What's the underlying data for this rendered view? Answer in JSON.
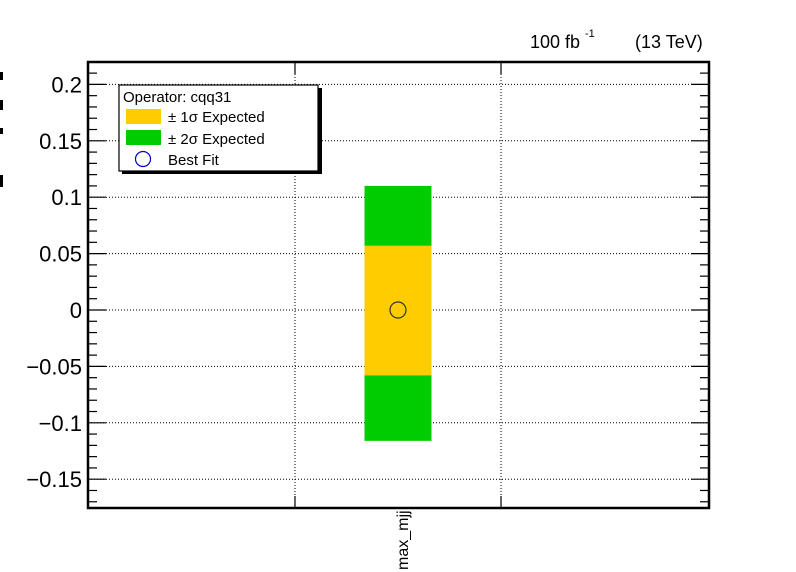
{
  "chart_data": {
    "type": "bar",
    "categories": [
      "max_mjj"
    ],
    "ylabel": "",
    "ylim": [
      -0.175,
      0.22
    ],
    "yticks": [
      "0.2",
      "0.15",
      "0.1",
      "0.05",
      "0",
      "−0.05",
      "−0.1",
      "−0.15"
    ],
    "ytick_values": [
      0.2,
      0.15,
      0.1,
      0.05,
      0,
      -0.05,
      -0.1,
      -0.15
    ],
    "grid": true,
    "legend_position": "top-left",
    "legend": {
      "title": "Operator: cqq31",
      "entries": [
        {
          "label": "± 1σ Expected",
          "color": "#ffcc00"
        },
        {
          "label": "± 2σ Expected",
          "color": "#00cc00"
        },
        {
          "label": "Best Fit",
          "color": "#0000cc"
        }
      ]
    },
    "series": [
      {
        "name": "± 2σ Expected",
        "low": [
          -0.116
        ],
        "high": [
          0.11
        ],
        "color": "#00cc00"
      },
      {
        "name": "± 1σ Expected",
        "low": [
          -0.058
        ],
        "high": [
          0.057
        ],
        "color": "#ffcc00"
      },
      {
        "name": "Best Fit",
        "values": [
          0.0
        ],
        "color": "#0000cc"
      }
    ],
    "luminosity": {
      "value": "100 fb",
      "superscript": "-1",
      "energy": "(13 TeV)"
    }
  }
}
